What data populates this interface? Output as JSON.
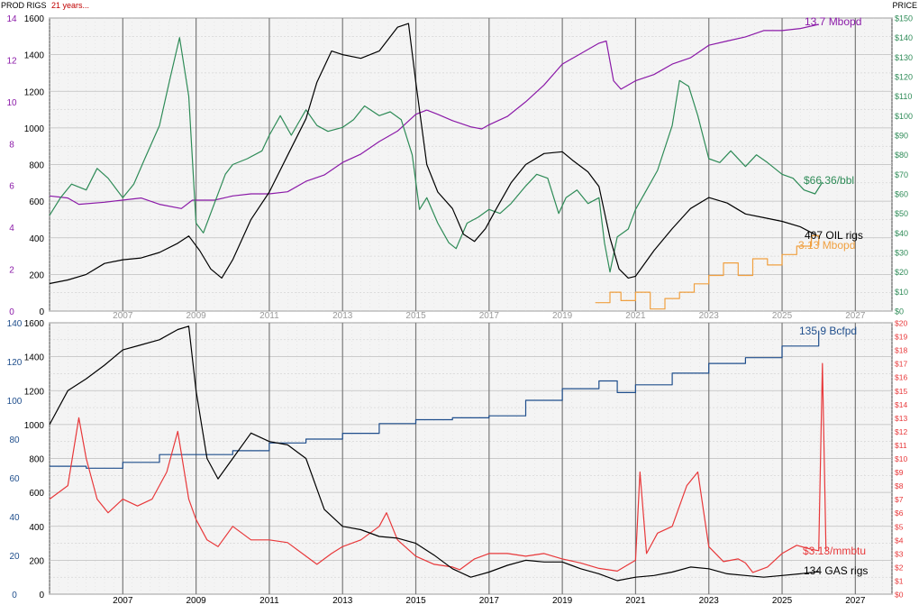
{
  "header": {
    "left_label": "PROD RIGS",
    "period_label": "21 years...",
    "right_label": "PRICE"
  },
  "colors": {
    "oil_production": "#8b1aa8",
    "oil_price": "#2e8b57",
    "oil_rigs": "#000000",
    "condensate": "#f0a040",
    "gas_production": "#1f4e8c",
    "gas_price": "#e8383a",
    "gas_rigs": "#000000",
    "grid": "#bdbdbd",
    "year_line": "#7a7a7a",
    "plot_bg": "#f4f4f4"
  },
  "chart_data": [
    {
      "type": "line",
      "panel": "oil",
      "x_axis": {
        "label": "",
        "range": [
          2005,
          2028
        ],
        "tick_labels": [
          "2007",
          "2009",
          "2011",
          "2013",
          "2015",
          "2017",
          "2019",
          "2021",
          "2023",
          "2025",
          "2027"
        ],
        "tick_years": [
          2007,
          2009,
          2011,
          2013,
          2015,
          2017,
          2019,
          2021,
          2023,
          2025,
          2027
        ]
      },
      "y_axis_production": {
        "ticks": [
          "0",
          "2",
          "4",
          "6",
          "8",
          "10",
          "12",
          "14"
        ],
        "range": [
          0,
          14
        ],
        "unit": "Mbopd"
      },
      "y_axis_rigs": {
        "ticks": [
          "0",
          "200",
          "400",
          "600",
          "800",
          "1000",
          "1200",
          "1400",
          "1600"
        ],
        "range": [
          0,
          1600
        ]
      },
      "y_axis_price": {
        "ticks": [
          "$0",
          "$10",
          "$20",
          "$30",
          "$40",
          "$50",
          "$60",
          "$70",
          "$80",
          "$90",
          "$100",
          "$110",
          "$120",
          "$130",
          "$140",
          "$150"
        ],
        "range": [
          0,
          150
        ]
      },
      "grid": true,
      "series": [
        {
          "name": "13.7 Mbopd",
          "axis": "production",
          "color_key": "oil_production",
          "x": [
            2005.0,
            2005.5,
            2005.8,
            2006.5,
            2007.5,
            2008.0,
            2008.6,
            2008.9,
            2009.5,
            2010.0,
            2010.5,
            2011.0,
            2011.5,
            2012.0,
            2012.5,
            2013.0,
            2013.5,
            2014.0,
            2014.5,
            2015.0,
            2015.3,
            2015.6,
            2016.0,
            2016.5,
            2016.8,
            2017.0,
            2017.5,
            2018.0,
            2018.5,
            2019.0,
            2019.5,
            2020.0,
            2020.2,
            2020.4,
            2020.6,
            2021.0,
            2021.5,
            2022.0,
            2022.5,
            2023.0,
            2023.5,
            2024.0,
            2024.5,
            2025.0,
            2025.5,
            2026.0
          ],
          "y": [
            5.5,
            5.4,
            5.1,
            5.2,
            5.4,
            5.1,
            4.9,
            5.3,
            5.3,
            5.5,
            5.6,
            5.6,
            5.7,
            6.2,
            6.5,
            7.1,
            7.5,
            8.1,
            8.6,
            9.4,
            9.6,
            9.4,
            9.1,
            8.8,
            8.7,
            8.9,
            9.3,
            10.0,
            10.8,
            11.8,
            12.3,
            12.8,
            12.9,
            11.0,
            10.6,
            11.0,
            11.3,
            11.8,
            12.1,
            12.7,
            12.9,
            13.1,
            13.4,
            13.4,
            13.5,
            13.7
          ]
        },
        {
          "name": "$66.36/bbl",
          "axis": "price",
          "color_key": "oil_price",
          "x": [
            2005.0,
            2005.3,
            2005.6,
            2006.0,
            2006.3,
            2006.6,
            2007.0,
            2007.3,
            2007.6,
            2008.0,
            2008.3,
            2008.55,
            2008.8,
            2009.0,
            2009.2,
            2009.5,
            2009.8,
            2010.0,
            2010.4,
            2010.8,
            2011.0,
            2011.3,
            2011.6,
            2012.0,
            2012.3,
            2012.6,
            2013.0,
            2013.3,
            2013.6,
            2014.0,
            2014.3,
            2014.6,
            2014.9,
            2015.1,
            2015.3,
            2015.6,
            2015.9,
            2016.1,
            2016.4,
            2016.7,
            2017.0,
            2017.3,
            2017.6,
            2018.0,
            2018.3,
            2018.6,
            2018.9,
            2019.1,
            2019.4,
            2019.7,
            2020.0,
            2020.15,
            2020.3,
            2020.5,
            2020.8,
            2021.0,
            2021.3,
            2021.6,
            2022.0,
            2022.2,
            2022.45,
            2022.7,
            2023.0,
            2023.3,
            2023.6,
            2024.0,
            2024.3,
            2024.6,
            2025.0,
            2025.3,
            2025.6,
            2025.9,
            2026.1
          ],
          "y": [
            49,
            58,
            65,
            62,
            73,
            68,
            58,
            65,
            78,
            95,
            120,
            140,
            110,
            45,
            40,
            55,
            70,
            75,
            78,
            82,
            90,
            100,
            90,
            103,
            95,
            92,
            94,
            98,
            105,
            100,
            102,
            98,
            80,
            52,
            58,
            45,
            35,
            32,
            45,
            48,
            52,
            50,
            55,
            64,
            70,
            68,
            50,
            58,
            62,
            55,
            58,
            35,
            20,
            38,
            42,
            52,
            62,
            72,
            95,
            118,
            115,
            100,
            78,
            76,
            82,
            74,
            80,
            76,
            70,
            68,
            62,
            60,
            66
          ]
        },
        {
          "name": "407 OIL rigs",
          "axis": "rigs",
          "color_key": "oil_rigs",
          "x": [
            2005.0,
            2005.5,
            2006.0,
            2006.5,
            2007.0,
            2007.5,
            2008.0,
            2008.5,
            2008.8,
            2009.1,
            2009.4,
            2009.7,
            2010.0,
            2010.5,
            2011.0,
            2011.5,
            2012.0,
            2012.3,
            2012.7,
            2013.0,
            2013.5,
            2014.0,
            2014.5,
            2014.8,
            2015.0,
            2015.3,
            2015.6,
            2016.0,
            2016.3,
            2016.6,
            2016.9,
            2017.2,
            2017.6,
            2018.0,
            2018.5,
            2019.0,
            2019.3,
            2019.7,
            2020.0,
            2020.3,
            2020.55,
            2020.8,
            2021.0,
            2021.5,
            2022.0,
            2022.5,
            2023.0,
            2023.5,
            2024.0,
            2024.5,
            2025.0,
            2025.5,
            2026.0
          ],
          "y": [
            150,
            170,
            200,
            260,
            280,
            290,
            320,
            370,
            410,
            330,
            230,
            180,
            280,
            500,
            650,
            850,
            1050,
            1250,
            1420,
            1400,
            1380,
            1420,
            1550,
            1570,
            1250,
            800,
            650,
            560,
            420,
            380,
            450,
            560,
            700,
            800,
            860,
            870,
            820,
            760,
            680,
            400,
            230,
            180,
            190,
            330,
            450,
            560,
            620,
            590,
            530,
            510,
            490,
            460,
            407
          ]
        },
        {
          "name": "3.13 Mbopd",
          "axis": "production",
          "color_key": "condensate",
          "style": "step",
          "x": [
            2019.9,
            2020.3,
            2020.6,
            2021.0,
            2021.4,
            2021.8,
            2022.2,
            2022.6,
            2023.0,
            2023.4,
            2023.8,
            2024.2,
            2024.6,
            2025.0,
            2025.4,
            2025.8,
            2026.0
          ],
          "y": [
            0.4,
            0.9,
            0.5,
            0.9,
            0.1,
            0.6,
            0.9,
            1.3,
            1.7,
            2.3,
            1.7,
            2.5,
            2.2,
            2.7,
            3.1,
            3.6,
            3.13
          ]
        }
      ],
      "annotations": [
        {
          "text": "13.7 Mbopd",
          "color_key": "oil_production"
        },
        {
          "text": "$66.36/bbl",
          "color_key": "oil_price"
        },
        {
          "text": "407 OIL rigs",
          "color_key": "oil_rigs"
        },
        {
          "text": "3.13 Mbopd",
          "color_key": "condensate"
        }
      ]
    },
    {
      "type": "line",
      "panel": "gas",
      "x_axis": {
        "label": "",
        "range": [
          2005,
          2028
        ],
        "tick_labels": [
          "2007",
          "2009",
          "2011",
          "2013",
          "2015",
          "2017",
          "2019",
          "2021",
          "2023",
          "2025",
          "2027"
        ],
        "tick_years": [
          2007,
          2009,
          2011,
          2013,
          2015,
          2017,
          2019,
          2021,
          2023,
          2025,
          2027
        ]
      },
      "y_axis_production": {
        "ticks": [
          "0",
          "20",
          "40",
          "60",
          "80",
          "100",
          "120",
          "140"
        ],
        "range": [
          0,
          140
        ],
        "unit": "Bcfpd"
      },
      "y_axis_rigs": {
        "ticks": [
          "0",
          "200",
          "400",
          "600",
          "800",
          "1000",
          "1200",
          "1400",
          "1600"
        ],
        "range": [
          0,
          1600
        ]
      },
      "y_axis_price": {
        "ticks": [
          "$0",
          "$1",
          "$2",
          "$3",
          "$4",
          "$5",
          "$6",
          "$7",
          "$8",
          "$9",
          "$10",
          "$11",
          "$12",
          "$13",
          "$14",
          "$15",
          "$16",
          "$17",
          "$18",
          "$19",
          "$20"
        ],
        "range": [
          0,
          20
        ]
      },
      "grid": true,
      "series": [
        {
          "name": "135.9 Bcfpd",
          "axis": "production",
          "color_key": "gas_production",
          "style": "step",
          "x": [
            2005.0,
            2006.0,
            2007.0,
            2008.0,
            2009.0,
            2010.0,
            2011.0,
            2012.0,
            2013.0,
            2014.0,
            2015.0,
            2016.0,
            2017.0,
            2018.0,
            2019.0,
            2020.0,
            2020.5,
            2021.0,
            2022.0,
            2023.0,
            2024.0,
            2025.0,
            2026.0
          ],
          "y": [
            66,
            65,
            68,
            72,
            72,
            74,
            78,
            80,
            83,
            88,
            90,
            91,
            92,
            100,
            106,
            110,
            104,
            108,
            114,
            119,
            122,
            128,
            135.9
          ]
        },
        {
          "name": "$3.13/mmbtu",
          "axis": "price",
          "color_key": "gas_price",
          "x": [
            2005.0,
            2005.5,
            2005.8,
            2006.0,
            2006.3,
            2006.6,
            2007.0,
            2007.4,
            2007.8,
            2008.2,
            2008.5,
            2008.8,
            2009.0,
            2009.3,
            2009.6,
            2010.0,
            2010.5,
            2011.0,
            2011.5,
            2012.0,
            2012.3,
            2012.7,
            2013.0,
            2013.5,
            2014.0,
            2014.2,
            2014.5,
            2015.0,
            2015.5,
            2016.0,
            2016.2,
            2016.6,
            2017.0,
            2017.5,
            2018.0,
            2018.5,
            2019.0,
            2019.5,
            2020.0,
            2020.5,
            2021.0,
            2021.12,
            2021.3,
            2021.6,
            2022.0,
            2022.4,
            2022.7,
            2023.0,
            2023.4,
            2023.8,
            2024.0,
            2024.2,
            2024.6,
            2025.0,
            2025.4,
            2025.8,
            2026.0,
            2026.1,
            2026.2
          ],
          "y": [
            7,
            8,
            13,
            10,
            7,
            6,
            7,
            6.5,
            7,
            9,
            12,
            7,
            5.5,
            4,
            3.5,
            5,
            4,
            4,
            3.8,
            2.8,
            2.2,
            3,
            3.5,
            4,
            5,
            6,
            4,
            2.8,
            2.2,
            2,
            1.8,
            2.6,
            3,
            3,
            2.8,
            3,
            2.6,
            2.3,
            1.9,
            1.7,
            2.5,
            9,
            3,
            4.5,
            5,
            8,
            9,
            3.5,
            2.4,
            2.6,
            2.3,
            1.6,
            2,
            3,
            3.6,
            3.3,
            3.2,
            17,
            3.13
          ]
        },
        {
          "name": "134 GAS rigs",
          "axis": "rigs",
          "color_key": "gas_rigs",
          "x": [
            2005.0,
            2005.5,
            2006.0,
            2006.5,
            2007.0,
            2007.5,
            2008.0,
            2008.5,
            2008.8,
            2009.0,
            2009.3,
            2009.6,
            2010.0,
            2010.5,
            2011.0,
            2011.5,
            2012.0,
            2012.5,
            2013.0,
            2013.5,
            2014.0,
            2014.5,
            2015.0,
            2015.5,
            2016.0,
            2016.5,
            2017.0,
            2017.5,
            2018.0,
            2018.5,
            2019.0,
            2019.5,
            2020.0,
            2020.5,
            2021.0,
            2021.5,
            2022.0,
            2022.5,
            2023.0,
            2023.5,
            2024.0,
            2024.5,
            2025.0,
            2025.5,
            2026.0
          ],
          "y": [
            1000,
            1200,
            1270,
            1350,
            1440,
            1470,
            1500,
            1560,
            1580,
            1200,
            800,
            680,
            800,
            950,
            900,
            880,
            800,
            500,
            400,
            380,
            340,
            330,
            300,
            230,
            150,
            100,
            130,
            170,
            200,
            190,
            190,
            150,
            120,
            80,
            100,
            110,
            130,
            160,
            150,
            120,
            110,
            100,
            110,
            120,
            134
          ]
        }
      ],
      "annotations": [
        {
          "text": "135.9 Bcfpd",
          "color_key": "gas_production"
        },
        {
          "text": "$3.13/mmbtu",
          "color_key": "gas_price"
        },
        {
          "text": "134 GAS rigs",
          "color_key": "gas_rigs"
        }
      ]
    }
  ]
}
